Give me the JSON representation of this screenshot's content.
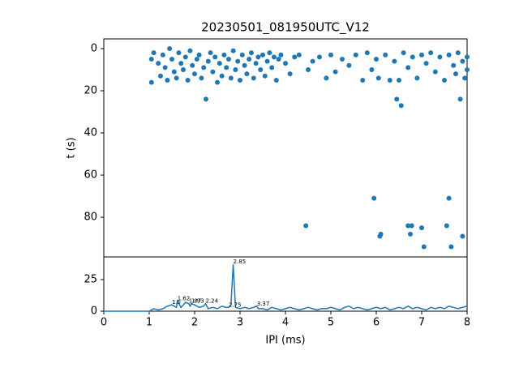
{
  "chart_data": [
    {
      "type": "scatter",
      "title": "20230501_081950UTC_V12",
      "ylabel": "t (s)",
      "color": "#1f77b4",
      "inverted": true,
      "xlim": [
        0,
        8
      ],
      "ylim": [
        -4.6,
        98.8
      ],
      "yticks": [
        0,
        20,
        40,
        60,
        80
      ],
      "x": [
        1.05,
        1.05,
        1.1,
        1.2,
        1.25,
        1.3,
        1.35,
        1.4,
        1.45,
        1.5,
        1.55,
        1.6,
        1.65,
        1.7,
        1.75,
        1.8,
        1.85,
        1.9,
        1.95,
        2.0,
        2.05,
        2.1,
        2.15,
        2.2,
        2.25,
        2.3,
        2.35,
        2.4,
        2.45,
        2.5,
        2.55,
        2.6,
        2.65,
        2.7,
        2.75,
        2.8,
        2.85,
        2.9,
        2.95,
        3.0,
        3.05,
        3.1,
        3.15,
        3.2,
        3.25,
        3.3,
        3.35,
        3.4,
        3.45,
        3.5,
        3.55,
        3.6,
        3.65,
        3.7,
        3.75,
        3.8,
        3.85,
        3.9,
        4.0,
        4.1,
        4.2,
        4.3,
        4.45,
        4.5,
        4.6,
        4.75,
        4.9,
        5.0,
        5.1,
        5.25,
        5.4,
        5.55,
        5.7,
        5.8,
        5.9,
        5.95,
        6.0,
        6.05,
        6.08,
        6.1,
        6.2,
        6.3,
        6.4,
        6.45,
        6.5,
        6.55,
        6.6,
        6.7,
        6.7,
        6.75,
        6.78,
        6.8,
        6.9,
        7.0,
        7.0,
        7.05,
        7.1,
        7.2,
        7.3,
        7.4,
        7.5,
        7.55,
        7.6,
        7.6,
        7.65,
        7.7,
        7.75,
        7.8,
        7.85,
        7.9,
        7.9,
        7.95,
        8.0,
        8.0
      ],
      "values": [
        5,
        16,
        2,
        7,
        13,
        3,
        9,
        15,
        0,
        5,
        11,
        14,
        2,
        7,
        10,
        4,
        15,
        1,
        8,
        12,
        5,
        3,
        14,
        9,
        24,
        6,
        2,
        11,
        4,
        16,
        7,
        13,
        3,
        9,
        5,
        14,
        1,
        10,
        6,
        15,
        3,
        8,
        12,
        5,
        2,
        14,
        7,
        4,
        10,
        3,
        13,
        6,
        2,
        9,
        4,
        15,
        5,
        3,
        7,
        12,
        4,
        3,
        84,
        10,
        6,
        4,
        14,
        3,
        11,
        5,
        8,
        3,
        15,
        2,
        10,
        71,
        5,
        14,
        89,
        88,
        3,
        15,
        6,
        24,
        15,
        27,
        2,
        84,
        9,
        88,
        84,
        4,
        14,
        85,
        3,
        94,
        7,
        2,
        11,
        4,
        15,
        84,
        71,
        3,
        94,
        8,
        12,
        2,
        24,
        89,
        6,
        14,
        4,
        10
      ]
    },
    {
      "type": "line",
      "xlabel": "IPI (ms)",
      "color": "#1f77b4",
      "xlim": [
        0,
        8
      ],
      "ylim": [
        0,
        42.9
      ],
      "xticks": [
        0,
        1,
        2,
        3,
        4,
        5,
        6,
        7,
        8
      ],
      "yticks": [
        0,
        25
      ],
      "x": [
        0,
        0.9,
        1.0,
        1.1,
        1.2,
        1.3,
        1.4,
        1.5,
        1.6,
        1.62,
        1.7,
        1.8,
        1.87,
        1.9,
        1.93,
        2.0,
        2.1,
        2.2,
        2.24,
        2.3,
        2.4,
        2.5,
        2.6,
        2.7,
        2.75,
        2.8,
        2.85,
        2.9,
        3.0,
        3.1,
        3.2,
        3.3,
        3.37,
        3.4,
        3.5,
        3.6,
        3.7,
        3.8,
        3.9,
        4.0,
        4.1,
        4.2,
        4.3,
        4.4,
        4.5,
        4.6,
        4.7,
        4.8,
        4.9,
        5.0,
        5.1,
        5.2,
        5.3,
        5.4,
        5.5,
        5.6,
        5.7,
        5.8,
        5.9,
        6.0,
        6.1,
        6.2,
        6.3,
        6.4,
        6.5,
        6.6,
        6.7,
        6.8,
        6.9,
        7.0,
        7.1,
        7.2,
        7.3,
        7.4,
        7.5,
        7.6,
        7.7,
        7.8,
        7.9,
        8.0
      ],
      "values": [
        0,
        0,
        0,
        2,
        1,
        2,
        4,
        5,
        3,
        8,
        3,
        7,
        6,
        4,
        6,
        5,
        3,
        4,
        6,
        2,
        3,
        2,
        4,
        3,
        3,
        5,
        37,
        3,
        2,
        3,
        2,
        3,
        4,
        2,
        2,
        1,
        3,
        2,
        1,
        2,
        3,
        2,
        1,
        2,
        3,
        2,
        1,
        2,
        2,
        3,
        2,
        1,
        3,
        4,
        2,
        3,
        2,
        1,
        2,
        3,
        2,
        3,
        1,
        2,
        3,
        2,
        4,
        2,
        3,
        2,
        1,
        3,
        2,
        3,
        2,
        4,
        3,
        2,
        3,
        4
      ],
      "annotations": [
        {
          "x": 1.5,
          "y": 5,
          "text": "1.5"
        },
        {
          "x": 1.62,
          "y": 8,
          "text": "1.62"
        },
        {
          "x": 1.87,
          "y": 6,
          "text": "1.87"
        },
        {
          "x": 1.93,
          "y": 6,
          "text": "1.93"
        },
        {
          "x": 2.24,
          "y": 6,
          "text": "2.24"
        },
        {
          "x": 2.75,
          "y": 3,
          "text": "2.75"
        },
        {
          "x": 2.85,
          "y": 37,
          "text": "2.85"
        },
        {
          "x": 3.37,
          "y": 4,
          "text": "3.37"
        }
      ]
    }
  ]
}
